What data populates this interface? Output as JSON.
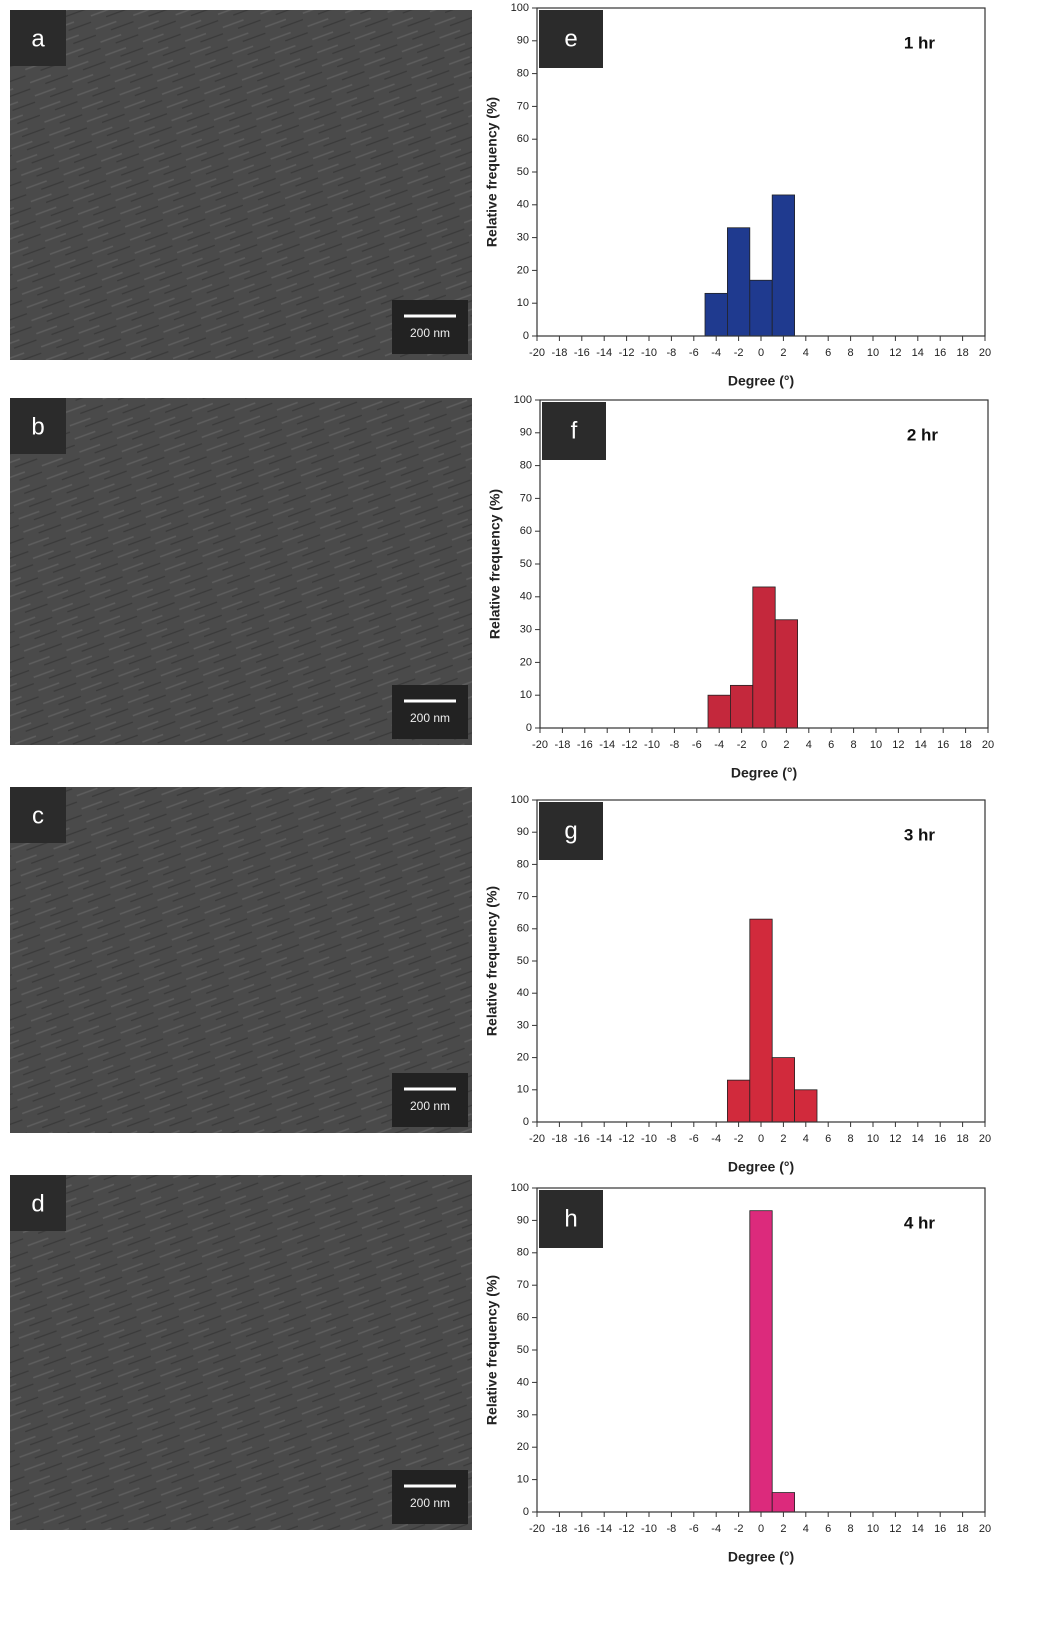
{
  "images": [
    {
      "label": "a",
      "scale": "200 nm"
    },
    {
      "label": "b",
      "scale": "200 nm"
    },
    {
      "label": "c",
      "scale": "200 nm"
    },
    {
      "label": "d",
      "scale": "200 nm"
    }
  ],
  "chart_data": [
    {
      "type": "histogram",
      "panel": "e",
      "title": "1 hr",
      "xlabel": "Degree (°)",
      "ylabel": "Relative frequency (%)",
      "bins": [
        -5,
        -3,
        -1,
        1,
        3
      ],
      "values": [
        13,
        33,
        17,
        43
      ],
      "color": "#1f3a8f",
      "xlim": [
        -20,
        20
      ],
      "xticks": [
        -20,
        -18,
        -16,
        -14,
        -12,
        -10,
        -8,
        -6,
        -4,
        -2,
        0,
        2,
        4,
        6,
        8,
        10,
        12,
        14,
        16,
        18,
        20
      ],
      "ylim": [
        0,
        100
      ],
      "yticks": [
        0,
        10,
        20,
        30,
        40,
        50,
        60,
        70,
        80,
        90,
        100
      ]
    },
    {
      "type": "histogram",
      "panel": "f",
      "title": "2 hr",
      "xlabel": "Degree (°)",
      "ylabel": "Relative frequency (%)",
      "bins": [
        -5,
        -3,
        -1,
        1,
        3
      ],
      "values": [
        10,
        13,
        43,
        33
      ],
      "color": "#c4283c",
      "xlim": [
        -20,
        20
      ],
      "xticks": [
        -20,
        -18,
        -16,
        -14,
        -12,
        -10,
        -8,
        -6,
        -4,
        -2,
        0,
        2,
        4,
        6,
        8,
        10,
        12,
        14,
        16,
        18,
        20
      ],
      "ylim": [
        0,
        100
      ],
      "yticks": [
        0,
        10,
        20,
        30,
        40,
        50,
        60,
        70,
        80,
        90,
        100
      ]
    },
    {
      "type": "histogram",
      "panel": "g",
      "title": "3 hr",
      "xlabel": "Degree (°)",
      "ylabel": "Relative frequency (%)",
      "bins": [
        -3,
        -1,
        1,
        3,
        5
      ],
      "values": [
        13,
        63,
        20,
        10
      ],
      "color": "#d12a3c",
      "xlim": [
        -20,
        20
      ],
      "xticks": [
        -20,
        -18,
        -16,
        -14,
        -12,
        -10,
        -8,
        -6,
        -4,
        -2,
        0,
        2,
        4,
        6,
        8,
        10,
        12,
        14,
        16,
        18,
        20
      ],
      "ylim": [
        0,
        100
      ],
      "yticks": [
        0,
        10,
        20,
        30,
        40,
        50,
        60,
        70,
        80,
        90,
        100
      ]
    },
    {
      "type": "histogram",
      "panel": "h",
      "title": "4 hr",
      "xlabel": "Degree (°)",
      "ylabel": "Relative frequency (%)",
      "bins": [
        -1,
        1,
        3
      ],
      "values": [
        93,
        6
      ],
      "color": "#dc2a7c",
      "xlim": [
        -20,
        20
      ],
      "xticks": [
        -20,
        -18,
        -16,
        -14,
        -12,
        -10,
        -8,
        -6,
        -4,
        -2,
        0,
        2,
        4,
        6,
        8,
        10,
        12,
        14,
        16,
        18,
        20
      ],
      "ylim": [
        0,
        100
      ],
      "yticks": [
        0,
        10,
        20,
        30,
        40,
        50,
        60,
        70,
        80,
        90,
        100
      ]
    }
  ]
}
